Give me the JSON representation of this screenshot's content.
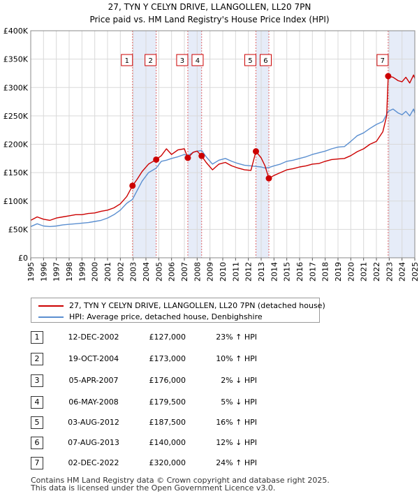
{
  "chart_data": {
    "type": "line",
    "title": "27, TYN Y CELYN DRIVE, LLANGOLLEN, LL20 7PN",
    "subtitle": "Price paid vs. HM Land Registry's House Price Index (HPI)",
    "xlim": [
      1995,
      2025
    ],
    "ylim": [
      0,
      400000
    ],
    "yticks": [
      {
        "value": 0,
        "label": "£0"
      },
      {
        "value": 50000,
        "label": "£50K"
      },
      {
        "value": 100000,
        "label": "£100K"
      },
      {
        "value": 150000,
        "label": "£150K"
      },
      {
        "value": 200000,
        "label": "£200K"
      },
      {
        "value": 250000,
        "label": "£250K"
      },
      {
        "value": 300000,
        "label": "£300K"
      },
      {
        "value": 350000,
        "label": "£350K"
      },
      {
        "value": 400000,
        "label": "£400K"
      }
    ],
    "xticks": [
      "1995",
      "1996",
      "1997",
      "1998",
      "1999",
      "2000",
      "2001",
      "2002",
      "2003",
      "2004",
      "2005",
      "2006",
      "2007",
      "2008",
      "2009",
      "2010",
      "2011",
      "2012",
      "2013",
      "2014",
      "2015",
      "2016",
      "2017",
      "2018",
      "2019",
      "2020",
      "2021",
      "2022",
      "2023",
      "2024",
      "2025"
    ],
    "series": [
      {
        "name": "27, TYN Y CELYN DRIVE, LLANGOLLEN, LL20 7PN (detached house)",
        "color": "#cc0000",
        "points": [
          [
            1995.0,
            66000
          ],
          [
            1995.5,
            72000
          ],
          [
            1996.0,
            68000
          ],
          [
            1996.5,
            66000
          ],
          [
            1997.0,
            70000
          ],
          [
            1997.5,
            72000
          ],
          [
            1998.0,
            74000
          ],
          [
            1998.5,
            76000
          ],
          [
            1999.0,
            76000
          ],
          [
            1999.5,
            78000
          ],
          [
            2000.0,
            79000
          ],
          [
            2000.5,
            82000
          ],
          [
            2001.0,
            84000
          ],
          [
            2001.5,
            88000
          ],
          [
            2002.0,
            95000
          ],
          [
            2002.5,
            108000
          ],
          [
            2002.95,
            127000
          ],
          [
            2003.3,
            138000
          ],
          [
            2003.7,
            152000
          ],
          [
            2004.2,
            165000
          ],
          [
            2004.8,
            173000
          ],
          [
            2005.2,
            180000
          ],
          [
            2005.6,
            192000
          ],
          [
            2006.0,
            182000
          ],
          [
            2006.5,
            190000
          ],
          [
            2007.0,
            192000
          ],
          [
            2007.27,
            176000
          ],
          [
            2007.7,
            186000
          ],
          [
            2008.0,
            188000
          ],
          [
            2008.35,
            179500
          ],
          [
            2008.7,
            168000
          ],
          [
            2009.2,
            155000
          ],
          [
            2009.7,
            165000
          ],
          [
            2010.2,
            168000
          ],
          [
            2010.7,
            162000
          ],
          [
            2011.2,
            158000
          ],
          [
            2011.7,
            155000
          ],
          [
            2012.2,
            154000
          ],
          [
            2012.59,
            187500
          ],
          [
            2013.0,
            176000
          ],
          [
            2013.3,
            162000
          ],
          [
            2013.6,
            140000
          ],
          [
            2014.0,
            145000
          ],
          [
            2014.5,
            150000
          ],
          [
            2015.0,
            155000
          ],
          [
            2015.5,
            157000
          ],
          [
            2016.0,
            160000
          ],
          [
            2016.5,
            162000
          ],
          [
            2017.0,
            165000
          ],
          [
            2017.5,
            166000
          ],
          [
            2018.0,
            170000
          ],
          [
            2018.5,
            173000
          ],
          [
            2019.0,
            174000
          ],
          [
            2019.5,
            175000
          ],
          [
            2020.0,
            180000
          ],
          [
            2020.5,
            187000
          ],
          [
            2021.0,
            192000
          ],
          [
            2021.5,
            200000
          ],
          [
            2022.0,
            205000
          ],
          [
            2022.5,
            222000
          ],
          [
            2022.8,
            250000
          ],
          [
            2022.92,
            320000
          ],
          [
            2023.3,
            318000
          ],
          [
            2023.7,
            312000
          ],
          [
            2024.0,
            310000
          ],
          [
            2024.3,
            318000
          ],
          [
            2024.6,
            308000
          ],
          [
            2024.9,
            322000
          ],
          [
            2025.0,
            316000
          ]
        ]
      },
      {
        "name": "HPI: Average price, detached house, Denbighshire",
        "color": "#5b8fd0",
        "points": [
          [
            1995.0,
            55000
          ],
          [
            1995.5,
            60000
          ],
          [
            1996.0,
            56000
          ],
          [
            1996.5,
            55000
          ],
          [
            1997.0,
            56000
          ],
          [
            1997.5,
            58000
          ],
          [
            1998.0,
            59000
          ],
          [
            1998.5,
            60000
          ],
          [
            1999.0,
            61000
          ],
          [
            1999.5,
            62000
          ],
          [
            2000.0,
            64000
          ],
          [
            2000.5,
            66000
          ],
          [
            2001.0,
            70000
          ],
          [
            2001.5,
            76000
          ],
          [
            2002.0,
            84000
          ],
          [
            2002.5,
            96000
          ],
          [
            2002.95,
            103000
          ],
          [
            2003.3,
            118000
          ],
          [
            2003.7,
            135000
          ],
          [
            2004.2,
            150000
          ],
          [
            2004.8,
            158000
          ],
          [
            2005.2,
            170000
          ],
          [
            2005.6,
            172000
          ],
          [
            2006.0,
            175000
          ],
          [
            2006.5,
            178000
          ],
          [
            2007.0,
            182000
          ],
          [
            2007.27,
            180000
          ],
          [
            2007.7,
            186000
          ],
          [
            2008.0,
            188000
          ],
          [
            2008.35,
            189000
          ],
          [
            2008.7,
            178000
          ],
          [
            2009.2,
            165000
          ],
          [
            2009.7,
            172000
          ],
          [
            2010.2,
            175000
          ],
          [
            2010.7,
            170000
          ],
          [
            2011.2,
            166000
          ],
          [
            2011.7,
            163000
          ],
          [
            2012.2,
            162000
          ],
          [
            2012.59,
            161000
          ],
          [
            2013.0,
            160000
          ],
          [
            2013.3,
            158000
          ],
          [
            2013.6,
            159000
          ],
          [
            2014.0,
            162000
          ],
          [
            2014.5,
            165000
          ],
          [
            2015.0,
            170000
          ],
          [
            2015.5,
            172000
          ],
          [
            2016.0,
            175000
          ],
          [
            2016.5,
            178000
          ],
          [
            2017.0,
            182000
          ],
          [
            2017.5,
            185000
          ],
          [
            2018.0,
            188000
          ],
          [
            2018.5,
            192000
          ],
          [
            2019.0,
            195000
          ],
          [
            2019.5,
            196000
          ],
          [
            2020.0,
            205000
          ],
          [
            2020.5,
            215000
          ],
          [
            2021.0,
            220000
          ],
          [
            2021.5,
            228000
          ],
          [
            2022.0,
            235000
          ],
          [
            2022.5,
            240000
          ],
          [
            2022.92,
            258000
          ],
          [
            2023.3,
            262000
          ],
          [
            2023.7,
            255000
          ],
          [
            2024.0,
            252000
          ],
          [
            2024.3,
            258000
          ],
          [
            2024.6,
            250000
          ],
          [
            2024.9,
            262000
          ],
          [
            2025.0,
            255000
          ]
        ]
      }
    ],
    "sales": [
      {
        "label": "1",
        "date": "12-DEC-2002",
        "x": 2002.95,
        "price": 127000,
        "price_label": "£127,000",
        "hpi": "23% ↑ HPI"
      },
      {
        "label": "2",
        "date": "19-OCT-2004",
        "x": 2004.8,
        "price": 173000,
        "price_label": "£173,000",
        "hpi": "10% ↑ HPI"
      },
      {
        "label": "3",
        "date": "05-APR-2007",
        "x": 2007.27,
        "price": 176000,
        "price_label": "£176,000",
        "hpi": "2% ↓ HPI"
      },
      {
        "label": "4",
        "date": "06-MAY-2008",
        "x": 2008.35,
        "price": 179500,
        "price_label": "£179,500",
        "hpi": "5% ↓ HPI"
      },
      {
        "label": "5",
        "date": "03-AUG-2012",
        "x": 2012.59,
        "price": 187500,
        "price_label": "£187,500",
        "hpi": "16% ↑ HPI"
      },
      {
        "label": "6",
        "date": "07-AUG-2013",
        "x": 2013.6,
        "price": 140000,
        "price_label": "£140,000",
        "hpi": "12% ↓ HPI"
      },
      {
        "label": "7",
        "date": "02-DEC-2022",
        "x": 2022.92,
        "price": 320000,
        "price_label": "£320,000",
        "hpi": "24% ↑ HPI"
      }
    ],
    "shaded_periods": [
      [
        2002.95,
        2004.8
      ],
      [
        2007.27,
        2008.35
      ],
      [
        2012.59,
        2013.6
      ],
      [
        2022.92,
        2025.0
      ]
    ],
    "grid": true,
    "legend_position": "below"
  },
  "legend": {
    "property": "27, TYN Y CELYN DRIVE, LLANGOLLEN, LL20 7PN (detached house)",
    "hpi": "HPI: Average price, detached house, Denbighshire"
  },
  "footer": {
    "line1": "Contains HM Land Registry data © Crown copyright and database right 2025.",
    "line2": "This data is licensed under the Open Government Licence v3.0."
  }
}
